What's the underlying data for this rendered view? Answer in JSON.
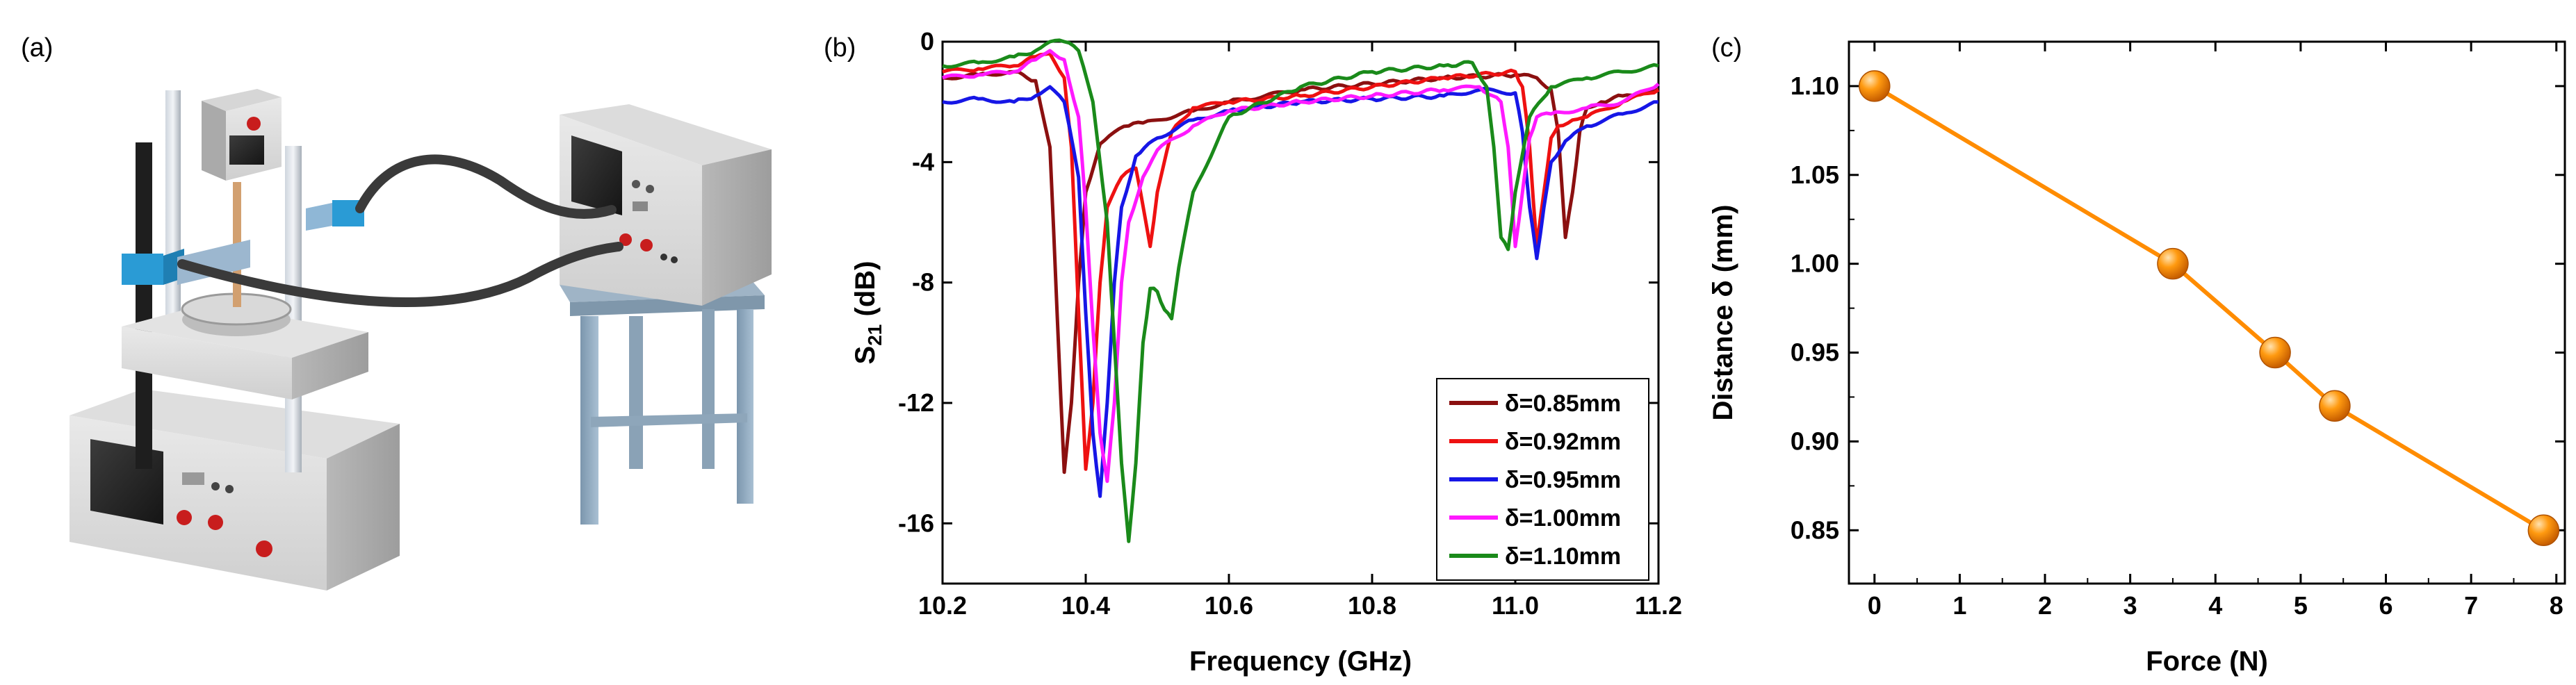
{
  "panels": {
    "a": {
      "label": "(a)"
    },
    "b": {
      "label": "(b)"
    },
    "c": {
      "label": "(c)"
    }
  },
  "colors": {
    "s085": "#8b1010",
    "s092": "#ee1111",
    "s095": "#1616e6",
    "s100": "#ff19ff",
    "s110": "#1a8a1a",
    "force_line": "#ff8c00"
  },
  "chart_data": [
    {
      "id": "b",
      "type": "line",
      "title": "",
      "xlabel": "Frequency (GHz)",
      "ylabel_main": "S",
      "ylabel_sub": "21",
      "ylabel_unit": " (dB)",
      "xlim": [
        10.2,
        11.2
      ],
      "ylim": [
        -18,
        0
      ],
      "xticks": [
        "10.2",
        "10.4",
        "10.6",
        "10.8",
        "11.0",
        "11.2"
      ],
      "yticks": [
        "0",
        "-4",
        "-8",
        "-12",
        "-16"
      ],
      "legend_position": "bottom-right",
      "series": [
        {
          "name": "δ=0.85mm",
          "color_key": "s085",
          "x": [
            10.2,
            10.25,
            10.3,
            10.33,
            10.35,
            10.36,
            10.37,
            10.38,
            10.39,
            10.4,
            10.42,
            10.44,
            10.46,
            10.48,
            10.5,
            10.55,
            10.6,
            10.65,
            10.7,
            10.8,
            10.9,
            11.0,
            11.03,
            11.05,
            11.06,
            11.07,
            11.08,
            11.09,
            11.1,
            11.12,
            11.15,
            11.2
          ],
          "y": [
            -1.2,
            -1.1,
            -1.0,
            -1.3,
            -3.5,
            -9,
            -14.3,
            -12,
            -8,
            -5,
            -3.4,
            -3.0,
            -2.8,
            -2.7,
            -2.6,
            -2.3,
            -2.0,
            -1.8,
            -1.6,
            -1.4,
            -1.2,
            -1.1,
            -1.2,
            -1.6,
            -3.0,
            -6.5,
            -5.0,
            -3.0,
            -2.2,
            -2.0,
            -1.8,
            -1.6
          ]
        },
        {
          "name": "δ=0.92mm",
          "color_key": "s092",
          "x": [
            10.2,
            10.25,
            10.3,
            10.33,
            10.35,
            10.37,
            10.38,
            10.39,
            10.4,
            10.41,
            10.42,
            10.43,
            10.45,
            10.47,
            10.49,
            10.5,
            10.52,
            10.55,
            10.6,
            10.7,
            10.8,
            10.9,
            11.0,
            11.01,
            11.02,
            11.03,
            11.04,
            11.05,
            11.06,
            11.08,
            11.1,
            11.15,
            11.2
          ],
          "y": [
            -1.0,
            -0.9,
            -0.8,
            -0.5,
            -0.4,
            -1.2,
            -3.5,
            -9,
            -14.2,
            -12,
            -8,
            -5.5,
            -4.5,
            -4.2,
            -6.8,
            -5.0,
            -3.0,
            -2.2,
            -2.0,
            -1.8,
            -1.5,
            -1.2,
            -1.0,
            -1.5,
            -3.5,
            -6.8,
            -5.0,
            -3.2,
            -2.8,
            -2.6,
            -2.5,
            -2.0,
            -1.6
          ]
        },
        {
          "name": "δ=0.95mm",
          "color_key": "s095",
          "x": [
            10.2,
            10.25,
            10.3,
            10.33,
            10.35,
            10.37,
            10.39,
            10.4,
            10.41,
            10.42,
            10.43,
            10.44,
            10.45,
            10.47,
            10.5,
            10.55,
            10.6,
            10.7,
            10.8,
            10.9,
            10.95,
            11.0,
            11.01,
            11.02,
            11.03,
            11.04,
            11.05,
            11.07,
            11.1,
            11.15,
            11.2
          ],
          "y": [
            -2.0,
            -1.9,
            -2.0,
            -1.8,
            -1.5,
            -2.0,
            -4.5,
            -9,
            -13,
            -15.1,
            -12,
            -8,
            -5.5,
            -3.8,
            -3.2,
            -2.6,
            -2.3,
            -2.0,
            -1.9,
            -1.8,
            -1.6,
            -1.7,
            -3.0,
            -5.5,
            -7.2,
            -5.5,
            -4.0,
            -3.3,
            -2.8,
            -2.4,
            -2.0
          ]
        },
        {
          "name": "δ=1.00mm",
          "color_key": "s100",
          "x": [
            10.2,
            10.25,
            10.3,
            10.33,
            10.35,
            10.37,
            10.39,
            10.4,
            10.41,
            10.42,
            10.43,
            10.44,
            10.45,
            10.46,
            10.48,
            10.5,
            10.55,
            10.6,
            10.7,
            10.8,
            10.9,
            10.95,
            10.98,
            10.99,
            11.0,
            11.01,
            11.02,
            11.03,
            11.05,
            11.1,
            11.15,
            11.2
          ],
          "y": [
            -1.2,
            -1.1,
            -1.0,
            -0.6,
            -0.3,
            -0.6,
            -2.5,
            -5.5,
            -9.5,
            -13,
            -14.6,
            -12,
            -8,
            -6,
            -4.5,
            -3.6,
            -2.8,
            -2.3,
            -2.0,
            -1.8,
            -1.6,
            -1.5,
            -2.0,
            -3.5,
            -6.8,
            -5.0,
            -3.2,
            -2.5,
            -2.4,
            -2.2,
            -2.0,
            -1.4
          ]
        },
        {
          "name": "δ=1.10mm",
          "color_key": "s110",
          "x": [
            10.2,
            10.25,
            10.3,
            10.33,
            10.35,
            10.37,
            10.39,
            10.41,
            10.43,
            10.44,
            10.45,
            10.46,
            10.47,
            10.48,
            10.49,
            10.5,
            10.51,
            10.52,
            10.53,
            10.55,
            10.6,
            10.7,
            10.8,
            10.9,
            10.94,
            10.96,
            10.97,
            10.98,
            10.99,
            11.0,
            11.02,
            11.05,
            11.1,
            11.15,
            11.2
          ],
          "y": [
            -0.8,
            -0.7,
            -0.5,
            -0.3,
            0,
            0,
            -0.3,
            -2.0,
            -6,
            -10,
            -14,
            -16.6,
            -14,
            -10,
            -8.2,
            -8.3,
            -8.9,
            -9.2,
            -7.5,
            -5.0,
            -2.5,
            -1.5,
            -1.0,
            -0.8,
            -0.7,
            -1.5,
            -3.5,
            -6.5,
            -6.9,
            -5.0,
            -2.5,
            -1.5,
            -1.2,
            -1.0,
            -0.8
          ]
        }
      ]
    },
    {
      "id": "c",
      "type": "line",
      "title": "",
      "xlabel": "Force (N)",
      "ylabel": "Distance δ (mm)",
      "xlim": [
        -0.3,
        8.1
      ],
      "ylim": [
        0.82,
        1.125
      ],
      "xticks": [
        "0",
        "1",
        "2",
        "3",
        "4",
        "5",
        "6",
        "7",
        "8"
      ],
      "yticks": [
        "0.85",
        "0.90",
        "0.95",
        "1.00",
        "1.05",
        "1.10"
      ],
      "series": [
        {
          "name": "Distance",
          "color_key": "force_line",
          "x": [
            0,
            3.5,
            4.7,
            5.4,
            7.85
          ],
          "y": [
            1.1,
            1.0,
            0.95,
            0.92,
            0.85
          ]
        }
      ]
    }
  ]
}
